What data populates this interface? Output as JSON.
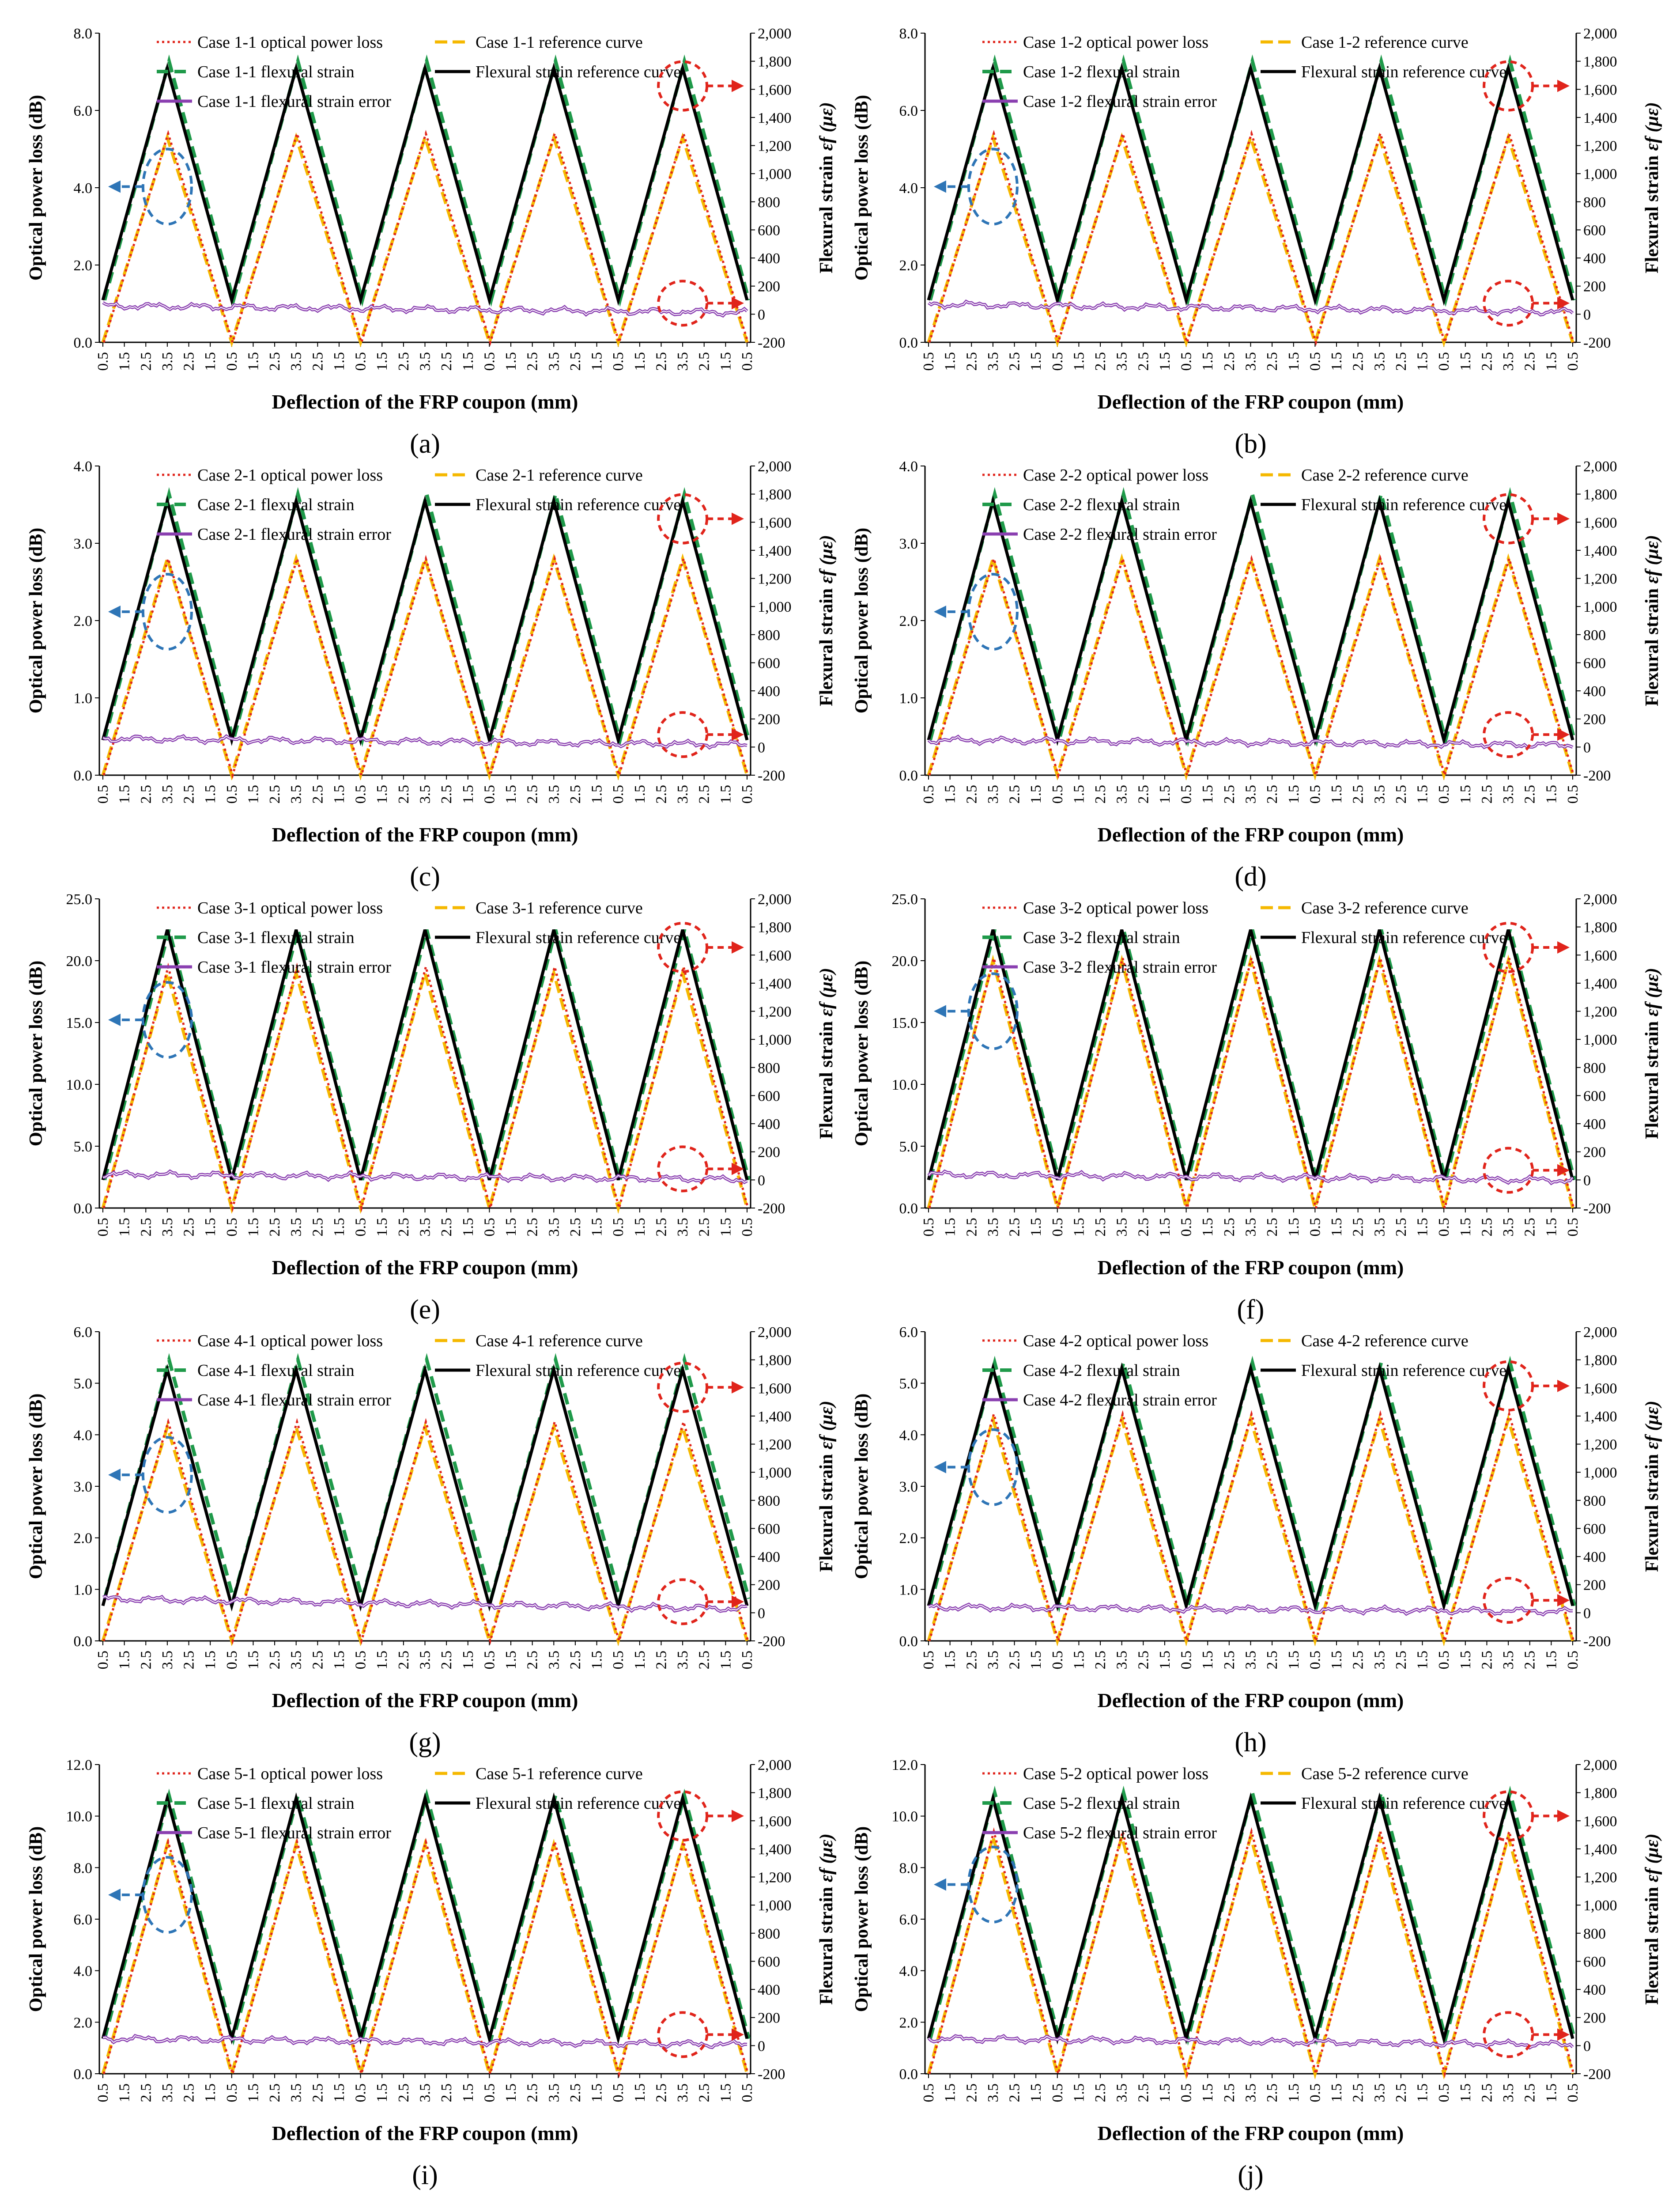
{
  "figure": {
    "x_ticks": [
      "0.5",
      "1.5",
      "2.5",
      "3.5",
      "2.5",
      "1.5",
      "0.5",
      "1.5",
      "2.5",
      "3.5",
      "2.5",
      "1.5",
      "0.5",
      "1.5",
      "2.5",
      "3.5",
      "2.5",
      "1.5",
      "0.5",
      "1.5",
      "2.5",
      "3.5",
      "2.5",
      "1.5",
      "0.5",
      "1.5",
      "2.5",
      "3.5",
      "2.5",
      "1.5",
      "0.5"
    ],
    "x_label": "Deflection of the FRP coupon (mm)",
    "y_left_label": "Optical power loss (dB)",
    "y_right_label": "Flexural strain",
    "y_right_symbol": "εf",
    "y_right_unit": "(με)",
    "right_ticks": [
      "-200",
      "0",
      "200",
      "400",
      "600",
      "800",
      "1,000",
      "1,200",
      "1,400",
      "1,600",
      "1,800",
      "2,000"
    ],
    "right_range": [
      -200,
      2000
    ],
    "legend_fixed": "Flexural strain reference curve",
    "colors": {
      "power_loss": "#e0241b",
      "power_reference": "#f5b800",
      "strain": "#1f9a4a",
      "strain_reference": "#000000",
      "strain_error": "#8a3fb0",
      "left_marker": "#2e75b6",
      "right_marker": "#e0241b"
    }
  },
  "chart_data": [
    {
      "panel": "(a)",
      "type": "line",
      "case": "1-1",
      "left_ticks": [
        "0.0",
        "2.0",
        "4.0",
        "6.0",
        "8.0"
      ],
      "left_range": [
        0,
        8
      ],
      "series": [
        {
          "name": "Case 1-1 optical power loss",
          "peak_dB": 5.4
        },
        {
          "name": "Case 1-1 reference curve",
          "peak_dB": 5.3
        },
        {
          "name": "Case 1-1 flexural strain",
          "peak_ue": 1800,
          "valley_ue": 100
        },
        {
          "name": "Flexural strain reference curve",
          "peak_ue": 1750,
          "valley_ue": 100
        },
        {
          "name": "Case 1-1 flexural strain error",
          "approx_ue": [
            60,
            -20
          ]
        }
      ],
      "legend": [
        "Case 1-1 optical power loss",
        "Case 1-1 reference curve",
        "Case 1-1 flexural strain",
        "Flexural strain reference curve",
        "Case 1-1 flexural strain error"
      ]
    },
    {
      "panel": "(b)",
      "type": "line",
      "case": "1-2",
      "left_ticks": [
        "0.0",
        "2.0",
        "4.0",
        "6.0",
        "8.0"
      ],
      "left_range": [
        0,
        8
      ],
      "series": [
        {
          "name": "Case 1-2 optical power loss",
          "peak_dB": 5.4
        },
        {
          "name": "Case 1-2 reference curve",
          "peak_dB": 5.3
        },
        {
          "name": "Case 1-2 flexural strain",
          "peak_ue": 1800,
          "valley_ue": 100
        },
        {
          "name": "Flexural strain reference curve",
          "peak_ue": 1750,
          "valley_ue": 100
        },
        {
          "name": "Case 1-2 flexural strain error",
          "approx_ue": [
            70,
            -20
          ]
        }
      ],
      "legend": [
        "Case 1-2 optical power loss",
        "Case 1-2 reference curve",
        "Case 1-2 flexural strain",
        "Flexural strain reference curve",
        "Case 1-2 flexural strain error"
      ]
    },
    {
      "panel": "(c)",
      "type": "line",
      "case": "2-1",
      "left_ticks": [
        "0.0",
        "1.0",
        "2.0",
        "3.0",
        "4.0"
      ],
      "left_range": [
        0,
        4
      ],
      "series": [
        {
          "name": "Case 2-1 optical power loss",
          "peak_dB": 2.8
        },
        {
          "name": "Case 2-1 reference curve",
          "peak_dB": 2.8
        },
        {
          "name": "Case 2-1 flexural strain",
          "peak_ue": 1800,
          "valley_ue": 50
        },
        {
          "name": "Flexural strain reference curve",
          "peak_ue": 1750,
          "valley_ue": 50
        },
        {
          "name": "Case 2-1 flexural strain error",
          "approx_ue": [
            60,
            -10
          ]
        }
      ],
      "legend": [
        "Case 2-1 optical power loss",
        "Case 2-1 reference curve",
        "Case 2-1 flexural strain",
        "Flexural strain reference curve",
        "Case 2-1 flexural strain error"
      ]
    },
    {
      "panel": "(d)",
      "type": "line",
      "case": "2-2",
      "left_ticks": [
        "0.0",
        "1.0",
        "2.0",
        "3.0",
        "4.0"
      ],
      "left_range": [
        0,
        4
      ],
      "series": [
        {
          "name": "Case 2-2 optical power loss",
          "peak_dB": 2.8
        },
        {
          "name": "Case 2-2 reference curve",
          "peak_dB": 2.8
        },
        {
          "name": "Case 2-2 flexural strain",
          "peak_ue": 1800,
          "valley_ue": 50
        },
        {
          "name": "Flexural strain reference curve",
          "peak_ue": 1750,
          "valley_ue": 50
        },
        {
          "name": "Case 2-2 flexural strain error",
          "approx_ue": [
            50,
            -10
          ]
        }
      ],
      "legend": [
        "Case 2-2 optical power loss",
        "Case 2-2 reference curve",
        "Case 2-2 flexural strain",
        "Flexural strain reference curve",
        "Case 2-2 flexural strain error"
      ]
    },
    {
      "panel": "(e)",
      "type": "line",
      "case": "3-1",
      "left_ticks": [
        "0.0",
        "5.0",
        "10.0",
        "15.0",
        "20.0",
        "25.0"
      ],
      "left_range": [
        0,
        25
      ],
      "series": [
        {
          "name": "Case 3-1 optical power loss",
          "peak_dB": 19.5
        },
        {
          "name": "Case 3-1 reference curve",
          "peak_dB": 19.0
        },
        {
          "name": "Case 3-1 flexural strain",
          "peak_ue": 1780,
          "valley_ue": 0
        },
        {
          "name": "Flexural strain reference curve",
          "peak_ue": 1780,
          "valley_ue": 0
        },
        {
          "name": "Case 3-1 flexural strain error",
          "approx_ue": [
            40,
            -20
          ]
        }
      ],
      "legend": [
        "Case 3-1 optical power loss",
        "Case 3-1 reference curve",
        "Case 3-1 flexural strain",
        "Flexural strain reference curve",
        "Case 3-1 flexural strain error"
      ]
    },
    {
      "panel": "(f)",
      "type": "line",
      "case": "3-2",
      "left_ticks": [
        "0.0",
        "5.0",
        "10.0",
        "15.0",
        "20.0",
        "25.0"
      ],
      "left_range": [
        0,
        25
      ],
      "series": [
        {
          "name": "Case 3-2 optical power loss",
          "peak_dB": 20.2
        },
        {
          "name": "Case 3-2 reference curve",
          "peak_dB": 20.0
        },
        {
          "name": "Case 3-2 flexural strain",
          "peak_ue": 1780,
          "valley_ue": 0
        },
        {
          "name": "Flexural strain reference curve",
          "peak_ue": 1780,
          "valley_ue": 0
        },
        {
          "name": "Case 3-2 flexural strain error",
          "approx_ue": [
            40,
            -30
          ]
        }
      ],
      "legend": [
        "Case 3-2 optical power loss",
        "Case 3-2 reference curve",
        "Case 3-2 flexural strain",
        "Flexural strain reference curve",
        "Case 3-2 flexural strain error"
      ]
    },
    {
      "panel": "(g)",
      "type": "line",
      "case": "4-1",
      "left_ticks": [
        "0.0",
        "1.0",
        "2.0",
        "3.0",
        "4.0",
        "5.0",
        "6.0"
      ],
      "left_range": [
        0,
        6
      ],
      "series": [
        {
          "name": "Case 4-1 optical power loss",
          "peak_dB": 4.25
        },
        {
          "name": "Case 4-1 reference curve",
          "peak_dB": 4.15
        },
        {
          "name": "Case 4-1 flexural strain",
          "peak_ue": 1800,
          "valley_ue": 100
        },
        {
          "name": "Flexural strain reference curve",
          "peak_ue": 1730,
          "valley_ue": 50
        },
        {
          "name": "Case 4-1 flexural strain error",
          "approx_ue": [
            100,
            -20
          ]
        }
      ],
      "legend": [
        "Case 4-1 optical power loss",
        "Case 4-1 reference curve",
        "Case 4-1 flexural strain",
        "Flexural strain reference curve",
        "Case 4-1 flexural strain error"
      ]
    },
    {
      "panel": "(h)",
      "type": "line",
      "case": "4-2",
      "left_ticks": [
        "0.0",
        "1.0",
        "2.0",
        "3.0",
        "4.0",
        "5.0",
        "6.0"
      ],
      "left_range": [
        0,
        6
      ],
      "series": [
        {
          "name": "Case 4-2 optical power loss",
          "peak_dB": 4.4
        },
        {
          "name": "Case 4-2 reference curve",
          "peak_dB": 4.3
        },
        {
          "name": "Case 4-2 flexural strain",
          "peak_ue": 1780,
          "valley_ue": 50
        },
        {
          "name": "Flexural strain reference curve",
          "peak_ue": 1740,
          "valley_ue": 50
        },
        {
          "name": "Case 4-2 flexural strain error",
          "approx_ue": [
            40,
            -10
          ]
        }
      ],
      "legend": [
        "Case 4-2 optical power loss",
        "Case 4-2 reference curve",
        "Case 4-2 flexural strain",
        "Flexural strain reference curve",
        "Case 4-2 flexural strain error"
      ]
    },
    {
      "panel": "(i)",
      "type": "line",
      "case": "5-1",
      "left_ticks": [
        "0.0",
        "2.0",
        "4.0",
        "6.0",
        "8.0",
        "10.0",
        "12.0"
      ],
      "left_range": [
        0,
        12
      ],
      "series": [
        {
          "name": "Case 5-1 optical power loss",
          "peak_dB": 9.0
        },
        {
          "name": "Case 5-1 reference curve",
          "peak_dB": 8.9
        },
        {
          "name": "Case 5-1 flexural strain",
          "peak_ue": 1780,
          "valley_ue": 50
        },
        {
          "name": "Flexural strain reference curve",
          "peak_ue": 1760,
          "valley_ue": 50
        },
        {
          "name": "Case 5-1 flexural strain error",
          "approx_ue": [
            50,
            -20
          ]
        }
      ],
      "legend": [
        "Case 5-1 optical power loss",
        "Case 5-1 reference curve",
        "Case 5-1 flexural strain",
        "Flexural strain reference curve",
        "Case 5-1 flexural strain error"
      ]
    },
    {
      "panel": "(j)",
      "type": "line",
      "case": "5-2",
      "left_ticks": [
        "0.0",
        "2.0",
        "4.0",
        "6.0",
        "8.0",
        "10.0",
        "12.0"
      ],
      "left_range": [
        0,
        12
      ],
      "series": [
        {
          "name": "Case 5-2 optical power loss",
          "peak_dB": 9.4
        },
        {
          "name": "Case 5-2 reference curve",
          "peak_dB": 9.2
        },
        {
          "name": "Case 5-2 flexural strain",
          "peak_ue": 1800,
          "valley_ue": 50
        },
        {
          "name": "Flexural strain reference curve",
          "peak_ue": 1760,
          "valley_ue": 50
        },
        {
          "name": "Case 5-2 flexural strain error",
          "approx_ue": [
            50,
            -20
          ]
        }
      ],
      "legend": [
        "Case 5-2 optical power loss",
        "Case 5-2 reference curve",
        "Case 5-2 flexural strain",
        "Flexural strain reference curve",
        "Case 5-2 flexural strain error"
      ]
    }
  ]
}
